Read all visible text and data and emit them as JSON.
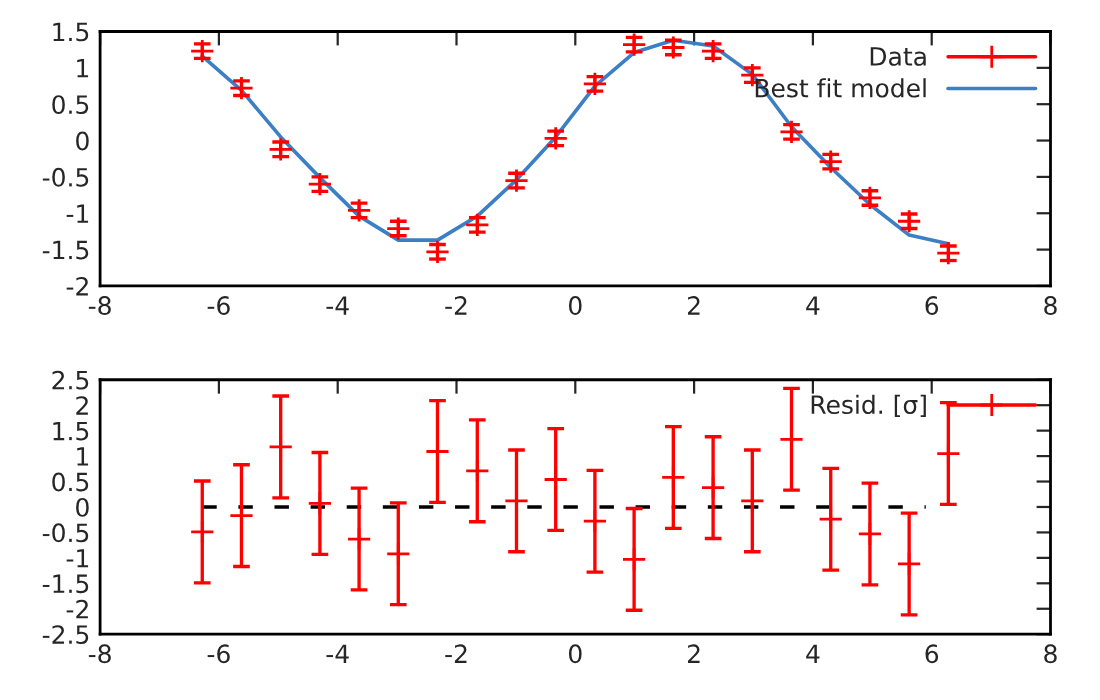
{
  "chart_data": [
    {
      "type": "scatter",
      "x": [
        -6.28,
        -5.62,
        -4.96,
        -4.3,
        -3.64,
        -2.98,
        -2.32,
        -1.65,
        -0.99,
        -0.33,
        0.33,
        0.99,
        1.65,
        2.32,
        2.98,
        3.64,
        4.3,
        4.96,
        5.62,
        6.28
      ],
      "series": [
        {
          "name": "Data",
          "type": "scatter",
          "color": "#ff0000",
          "marker": "cross",
          "values": [
            1.23,
            0.72,
            -0.12,
            -0.6,
            -0.96,
            -1.21,
            -1.53,
            -1.16,
            -0.55,
            0.03,
            0.78,
            1.32,
            1.28,
            1.23,
            0.9,
            0.12,
            -0.29,
            -0.79,
            -1.11,
            -1.55
          ],
          "errors": [
            0.1,
            0.1,
            0.1,
            0.1,
            0.1,
            0.1,
            0.1,
            0.1,
            0.1,
            0.1,
            0.1,
            0.1,
            0.1,
            0.1,
            0.1,
            0.1,
            0.1,
            0.1,
            0.1,
            0.1
          ]
        },
        {
          "name": "Best fit model",
          "type": "line",
          "color": "#3b7fc4",
          "line_style": "solid",
          "values": [
            1.16,
            0.69,
            0.05,
            -0.51,
            -1.04,
            -1.37,
            -1.37,
            -1.04,
            -0.54,
            0.05,
            0.75,
            1.21,
            1.38,
            1.3,
            0.91,
            0.19,
            -0.37,
            -0.88,
            -1.3,
            -1.42
          ]
        }
      ],
      "xlim": [
        -8,
        8
      ],
      "xticks": [
        -8,
        -6,
        -4,
        -2,
        0,
        2,
        4,
        6,
        8
      ],
      "ylim": [
        -2,
        1.5
      ],
      "yticks": [
        -2,
        -1.5,
        -1,
        -0.5,
        0,
        0.5,
        1,
        1.5
      ],
      "legend": "top right",
      "grid": false
    },
    {
      "type": "scatter",
      "x": [
        -6.28,
        -5.62,
        -4.96,
        -4.3,
        -3.64,
        -2.98,
        -2.32,
        -1.65,
        -0.99,
        -0.33,
        0.33,
        0.99,
        1.65,
        2.32,
        2.98,
        3.64,
        4.3,
        4.96,
        5.62,
        6.28
      ],
      "series": [
        {
          "name": "Resid. [σ]",
          "type": "scatter",
          "color": "#ff0000",
          "marker": "cross",
          "values": [
            -0.49,
            -0.17,
            1.18,
            0.07,
            -0.63,
            -0.92,
            1.09,
            0.71,
            0.12,
            0.54,
            -0.28,
            -1.03,
            0.58,
            0.38,
            0.12,
            1.33,
            -0.24,
            -0.53,
            -1.12,
            1.05
          ],
          "errors": [
            1,
            1,
            1,
            1,
            1,
            1,
            1,
            1,
            1,
            1,
            1,
            1,
            1,
            1,
            1,
            1,
            1,
            1,
            1,
            1
          ]
        },
        {
          "type": "line",
          "color": "#000000",
          "line_style": "dashed",
          "x": [
            -6.28,
            5.9
          ],
          "values": [
            0,
            0
          ]
        }
      ],
      "xlim": [
        -8,
        8
      ],
      "xticks": [
        -8,
        -6,
        -4,
        -2,
        0,
        2,
        4,
        6,
        8
      ],
      "ylim": [
        -2.5,
        2.5
      ],
      "yticks": [
        -2.5,
        -2,
        -1.5,
        -1,
        -0.5,
        0,
        0.5,
        1,
        1.5,
        2,
        2.5
      ],
      "legend": "top right",
      "grid": false
    }
  ]
}
